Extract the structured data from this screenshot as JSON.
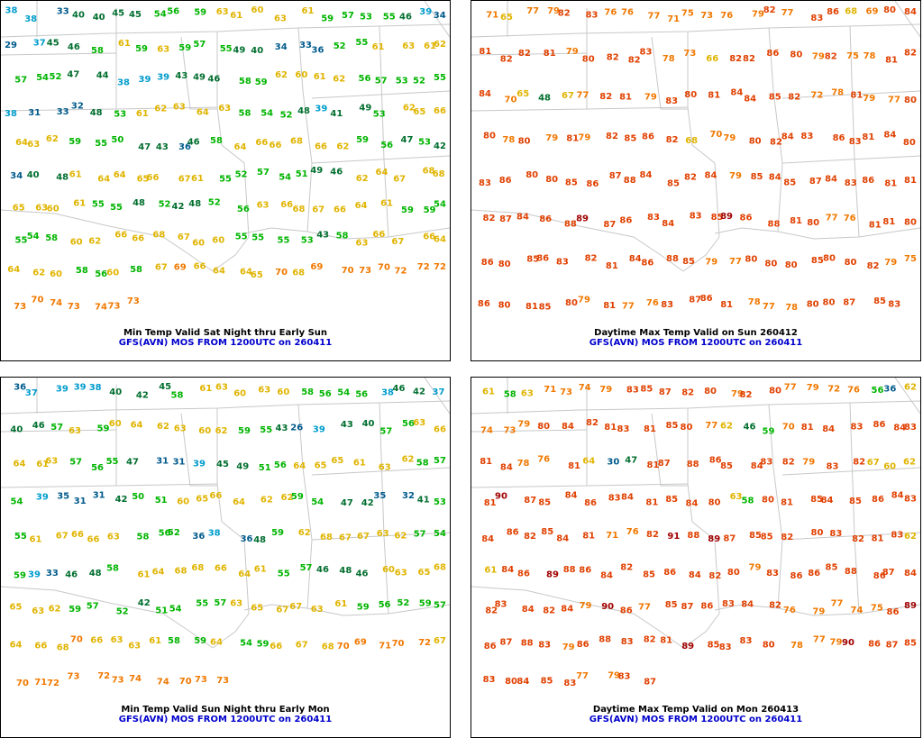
{
  "palette": {
    "very_cold": "#005a8c",
    "cold": "#009ccc",
    "cool": "#006e2e",
    "mild": "#00b400",
    "warm": "#e0b400",
    "hot": "#f07800",
    "very_hot": "#e04000",
    "extreme": "#a00000",
    "map_lines": "#c8c8c8",
    "caption_model": "#0000cc"
  },
  "panels": [
    {
      "caption": "Min Temp Valid Sat Night thru Early Sun",
      "model": "GFS(AVN) MOS FROM 1200UTC on 260411",
      "values": [
        38,
        38,
        33,
        40,
        40,
        45,
        45,
        54,
        56,
        59,
        63,
        61,
        60,
        63,
        61,
        59,
        57,
        53,
        55,
        46,
        39,
        34,
        29,
        37,
        45,
        46,
        58,
        61,
        59,
        63,
        59,
        57,
        55,
        49,
        40,
        34,
        33,
        36,
        52,
        55,
        61,
        63,
        61,
        62,
        57,
        54,
        52,
        47,
        44,
        38,
        39,
        39,
        43,
        49,
        46,
        58,
        59,
        62,
        60,
        61,
        62,
        56,
        57,
        53,
        52,
        55,
        38,
        31,
        33,
        32,
        48,
        53,
        61,
        62,
        63,
        64,
        63,
        58,
        54,
        52,
        48,
        39,
        41,
        49,
        53,
        62,
        65,
        66,
        64,
        63,
        62,
        59,
        55,
        50,
        47,
        43,
        36,
        46,
        58,
        64,
        66,
        66,
        68,
        66,
        62,
        59,
        56,
        47,
        53,
        42,
        34,
        40,
        48,
        61,
        64,
        64,
        65,
        66,
        67,
        61,
        55,
        52,
        57,
        54,
        51,
        49,
        46,
        62,
        64,
        67,
        68,
        68,
        65,
        63,
        60,
        61,
        55,
        55,
        48,
        52,
        42,
        48,
        52,
        56,
        63,
        66,
        68,
        67,
        66,
        64,
        61,
        59,
        59,
        54,
        55,
        54,
        58,
        60,
        62,
        66,
        66,
        68,
        67,
        60,
        60,
        55,
        55,
        55,
        53,
        43,
        58,
        63,
        66,
        67,
        66,
        64,
        64,
        62,
        60,
        58,
        56,
        60,
        58,
        67,
        69,
        66,
        64,
        64,
        65,
        70,
        68,
        69,
        70,
        73,
        70,
        72,
        72,
        72,
        73,
        70,
        74,
        73,
        74,
        73,
        73
      ]
    },
    {
      "caption": "Daytime Max Temp Valid on Sun 260412",
      "model": "GFS(AVN) MOS FROM 1200UTC on 260411",
      "values": [
        71,
        65,
        77,
        79,
        82,
        83,
        76,
        76,
        77,
        71,
        75,
        73,
        76,
        79,
        82,
        77,
        83,
        86,
        68,
        69,
        80,
        84,
        81,
        82,
        82,
        81,
        79,
        80,
        82,
        82,
        83,
        78,
        73,
        66,
        82,
        82,
        86,
        80,
        79,
        82,
        75,
        78,
        81,
        82,
        84,
        70,
        65,
        48,
        67,
        77,
        82,
        81,
        79,
        83,
        80,
        81,
        84,
        84,
        85,
        82,
        72,
        78,
        81,
        79,
        77,
        80,
        80,
        78,
        80,
        79,
        81,
        79,
        82,
        85,
        86,
        82,
        68,
        70,
        79,
        80,
        82,
        84,
        83,
        86,
        83,
        81,
        84,
        80,
        83,
        86,
        80,
        80,
        85,
        86,
        87,
        88,
        84,
        85,
        82,
        84,
        79,
        85,
        84,
        85,
        87,
        84,
        83,
        86,
        81,
        81,
        82,
        87,
        84,
        86,
        88,
        89,
        87,
        86,
        83,
        84,
        83,
        85,
        89,
        86,
        88,
        81,
        80,
        77,
        76,
        81,
        81,
        80,
        86,
        80,
        85,
        86,
        83,
        82,
        81,
        84,
        86,
        88,
        85,
        79,
        77,
        80,
        80,
        80,
        85,
        80,
        80,
        82,
        79,
        75,
        86,
        80,
        81,
        85,
        80,
        79,
        81,
        77,
        76,
        83,
        87,
        86,
        81,
        78,
        77,
        78,
        80,
        80,
        87,
        85,
        83
      ],
      "note": ""
    },
    {
      "caption": "Min Temp Valid Sun Night thru Early Mon",
      "model": "GFS(AVN) MOS FROM 1200UTC on 260411",
      "values": [
        36,
        37,
        39,
        39,
        38,
        40,
        42,
        45,
        58,
        61,
        63,
        60,
        63,
        60,
        58,
        56,
        54,
        56,
        38,
        46,
        42,
        37,
        40,
        46,
        57,
        63,
        59,
        60,
        64,
        62,
        63,
        60,
        62,
        59,
        55,
        43,
        26,
        39,
        43,
        40,
        57,
        56,
        63,
        66,
        64,
        61,
        63,
        57,
        56,
        55,
        47,
        31,
        31,
        39,
        45,
        49,
        51,
        56,
        64,
        65,
        65,
        61,
        63,
        62,
        58,
        57,
        54,
        39,
        35,
        31,
        31,
        42,
        50,
        51,
        60,
        65,
        66,
        64,
        62,
        62,
        59,
        54,
        47,
        42,
        35,
        32,
        41,
        53,
        55,
        61,
        67,
        66,
        66,
        63,
        58,
        56,
        52,
        36,
        38,
        36,
        48,
        59,
        62,
        68,
        67,
        67,
        63,
        62,
        57,
        54,
        59,
        39,
        33,
        46,
        48,
        58,
        61,
        64,
        68,
        68,
        66,
        64,
        61,
        55,
        57,
        46,
        48,
        46,
        60,
        63,
        65,
        68,
        65,
        63,
        62,
        59,
        57,
        52,
        42,
        51,
        54,
        55,
        57,
        63,
        65,
        67,
        67,
        63,
        61,
        59,
        56,
        52,
        59,
        57,
        64,
        66,
        68,
        70,
        66,
        63,
        63,
        61,
        58,
        59,
        64,
        54,
        59,
        66,
        67,
        68,
        70,
        69,
        71,
        70,
        72,
        67,
        70,
        71,
        72,
        73,
        72,
        73,
        74,
        74,
        70,
        73,
        73
      ]
    },
    {
      "caption": "Daytime Max Temp Valid on Mon 260413",
      "model": "GFS(AVN) MOS FROM 1200UTC on 260411",
      "values": [
        61,
        58,
        63,
        71,
        73,
        74,
        79,
        83,
        85,
        87,
        82,
        80,
        79,
        82,
        80,
        77,
        79,
        72,
        76,
        56,
        36,
        62,
        74,
        73,
        79,
        80,
        84,
        82,
        81,
        83,
        81,
        85,
        80,
        77,
        62,
        46,
        59,
        70,
        81,
        84,
        83,
        86,
        84,
        83,
        81,
        84,
        78,
        76,
        81,
        64,
        30,
        47,
        81,
        87,
        88,
        86,
        85,
        84,
        83,
        82,
        79,
        83,
        82,
        67,
        60,
        62,
        81,
        90,
        87,
        85,
        84,
        86,
        83,
        84,
        81,
        85,
        84,
        80,
        63,
        58,
        80,
        81,
        85,
        84,
        85,
        86,
        84,
        83,
        84,
        86,
        82,
        85,
        84,
        81,
        71,
        76,
        82,
        91,
        88,
        89,
        87,
        85,
        85,
        82,
        80,
        83,
        82,
        81,
        83,
        62,
        61,
        84,
        86,
        89,
        88,
        86,
        84,
        82,
        85,
        86,
        84,
        82,
        80,
        79,
        83,
        86,
        86,
        85,
        88,
        86,
        87,
        84,
        82,
        83,
        84,
        82,
        84,
        79,
        90,
        86,
        77,
        85,
        87,
        86,
        83,
        84,
        82,
        76,
        79,
        77,
        74,
        75,
        86,
        89,
        86,
        87,
        88,
        83,
        79,
        86,
        88,
        83,
        82,
        81,
        89,
        85,
        83,
        83,
        80,
        78,
        77,
        79,
        90,
        86,
        87,
        85,
        83,
        80,
        84,
        85,
        83,
        77,
        79,
        83,
        87
      ]
    }
  ]
}
